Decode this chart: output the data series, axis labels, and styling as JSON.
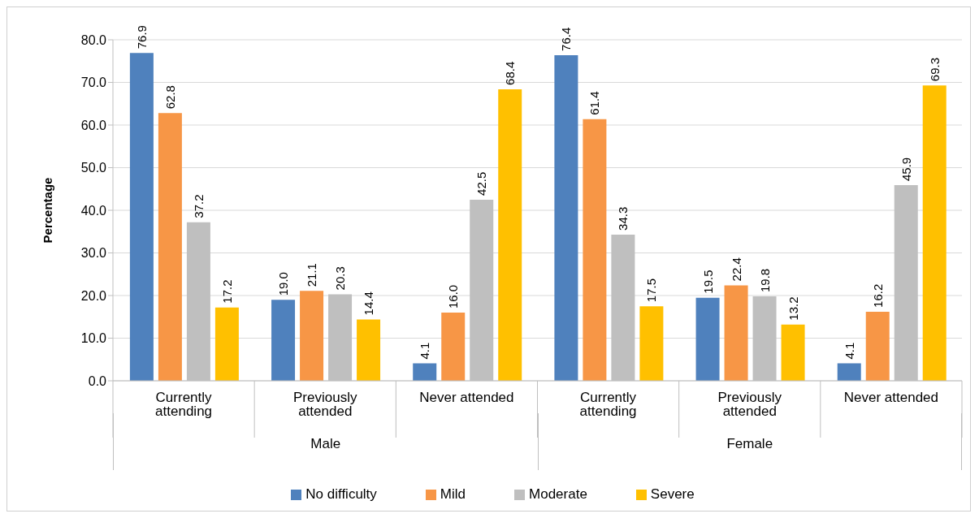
{
  "chart_data": {
    "type": "bar",
    "ylabel": "Percentage",
    "categories": [
      "Currently attending",
      "Previously attended",
      "Never attended",
      "Currently attending",
      "Previously attended",
      "Never attended"
    ],
    "annotations": [
      "Male",
      "Female"
    ],
    "series": [
      {
        "name": "No difficulty",
        "color": "#4f81bd",
        "values": [
          76.9,
          19.0,
          4.1,
          76.4,
          19.5,
          4.1
        ],
        "value_labels": [
          "76.9",
          "19.0",
          "4.1",
          "76.4",
          "19.5",
          "4.1"
        ]
      },
      {
        "name": "Mild",
        "color": "#f79646",
        "values": [
          62.8,
          21.1,
          16.0,
          61.4,
          22.4,
          16.2
        ],
        "value_labels": [
          "62.8",
          "21.1",
          "16.0",
          "61.4",
          "22.4",
          "16.2"
        ]
      },
      {
        "name": "Moderate",
        "color": "#bfbfbf",
        "values": [
          37.2,
          20.3,
          42.5,
          34.3,
          19.8,
          45.9
        ],
        "value_labels": [
          "37.2",
          "20.3",
          "42.5",
          "34.3",
          "19.8",
          "45.9"
        ]
      },
      {
        "name": "Severe",
        "color": "#ffc000",
        "values": [
          17.2,
          14.4,
          68.4,
          17.5,
          13.2,
          69.3
        ],
        "value_labels": [
          "17.2",
          "14.4",
          "68.4",
          "17.5",
          "13.2",
          "69.3"
        ]
      }
    ],
    "ylim": [
      0,
      80
    ],
    "yticks": [
      {
        "value": 0,
        "label": "0.0"
      },
      {
        "value": 10,
        "label": "10.0"
      },
      {
        "value": 20,
        "label": "20.0"
      },
      {
        "value": 30,
        "label": "30.0"
      },
      {
        "value": 40,
        "label": "40.0"
      },
      {
        "value": 50,
        "label": "50.0"
      },
      {
        "value": 60,
        "label": "60.0"
      },
      {
        "value": 70,
        "label": "70.0"
      },
      {
        "value": 80,
        "label": "80.0"
      }
    ],
    "grid": "y",
    "legend": "bottom"
  }
}
